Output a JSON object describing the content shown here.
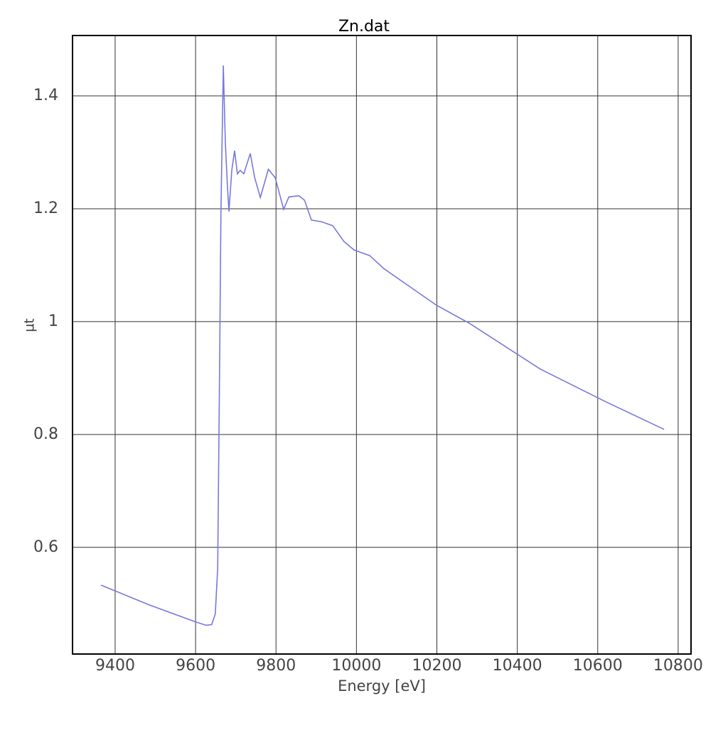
{
  "chart_data": {
    "type": "line",
    "title": "Zn.dat",
    "x_label": "Energy [eV]",
    "y_label": "µt",
    "x": [
      9365,
      9485,
      9600,
      9626,
      9640,
      9649,
      9655,
      9660,
      9663,
      9669,
      9674,
      9679,
      9683,
      9690,
      9697,
      9704,
      9711,
      9720,
      9736,
      9747,
      9761,
      9781,
      9798,
      9819,
      9832,
      9857,
      9871,
      9888,
      9913,
      9941,
      9969,
      9994,
      10033,
      10068,
      10199,
      10281,
      10457,
      10617,
      10765
    ],
    "series": [
      {
        "name": "Zn.dat",
        "color": "#7878dc",
        "values": [
          0.533,
          0.498,
          0.468,
          0.462,
          0.463,
          0.482,
          0.563,
          0.941,
          1.192,
          1.454,
          1.318,
          1.243,
          1.195,
          1.268,
          1.303,
          1.262,
          1.268,
          1.262,
          1.298,
          1.255,
          1.22,
          1.27,
          1.255,
          1.199,
          1.221,
          1.223,
          1.215,
          1.18,
          1.177,
          1.17,
          1.142,
          1.127,
          1.117,
          1.094,
          1.029,
          0.997,
          0.916,
          0.859,
          0.809
        ]
      }
    ],
    "xlim": [
      9294,
      10832
    ],
    "xticks": [
      9400,
      9600,
      9800,
      10000,
      10200,
      10400,
      10600,
      10800
    ],
    "ylim": [
      0.411,
      1.507
    ],
    "yticks": [
      0.6,
      0.8,
      1,
      1.2,
      1.4
    ],
    "grid": true
  }
}
